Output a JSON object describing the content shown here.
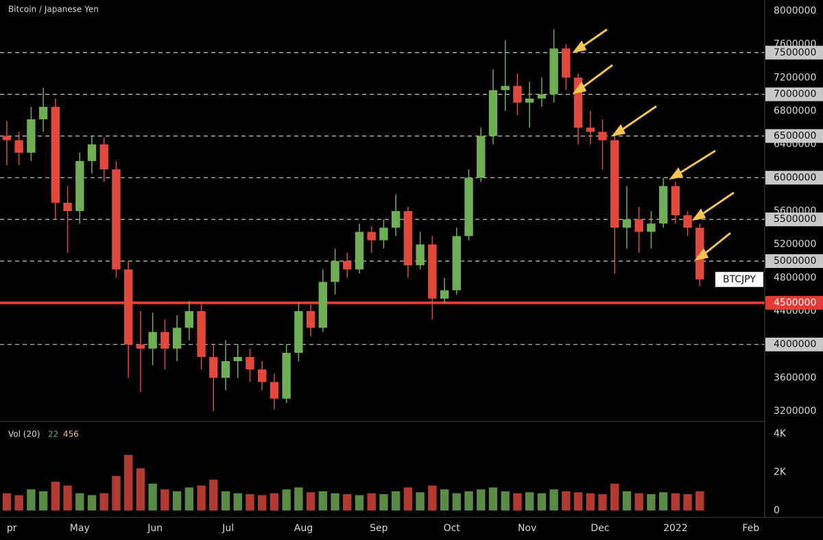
{
  "chart_data": {
    "type": "candlestick",
    "title": "Bitcoin / Japanese Yen",
    "symbol": "BTCJPY",
    "x": [
      0,
      5,
      10,
      15,
      20,
      25,
      30,
      35,
      40,
      45,
      50,
      55,
      60,
      65,
      70,
      75,
      80,
      85,
      90,
      95,
      100,
      105,
      110,
      115,
      120,
      125,
      130,
      135,
      140,
      145,
      150,
      155,
      160,
      165,
      170,
      175,
      180,
      185,
      190,
      195,
      200,
      205,
      210,
      215,
      220,
      225,
      230,
      235,
      240,
      245,
      250,
      255,
      260,
      265,
      270,
      275,
      280,
      285
    ],
    "open": [
      6500000,
      6450000,
      6300000,
      6700000,
      6850000,
      5700000,
      5600000,
      6200000,
      6400000,
      6100000,
      4900000,
      4000000,
      3950000,
      4150000,
      3950000,
      4200000,
      4400000,
      3850000,
      3600000,
      3800000,
      3850000,
      3700000,
      3550000,
      3350000,
      3900000,
      4400000,
      4200000,
      4750000,
      5000000,
      4900000,
      5350000,
      5250000,
      5400000,
      5600000,
      4950000,
      5200000,
      4550000,
      4650000,
      5300000,
      6000000,
      6500000,
      7050000,
      7100000,
      6900000,
      6950000,
      7000000,
      7550000,
      7200000,
      6600000,
      6550000,
      6450000,
      5400000,
      5500000,
      5350000,
      5450000,
      5900000,
      5550000,
      5400000
    ],
    "high": [
      6680000,
      6550000,
      6850000,
      7080000,
      6950000,
      5900000,
      6300000,
      6500000,
      6480000,
      6200000,
      5000000,
      4400000,
      4380000,
      4300000,
      4350000,
      4520000,
      4500000,
      4000000,
      4050000,
      4000000,
      3950000,
      3800000,
      3650000,
      4000000,
      4500000,
      4480000,
      4900000,
      5150000,
      5100000,
      5450000,
      5420000,
      5500000,
      5800000,
      5650000,
      5350000,
      5300000,
      4800000,
      5400000,
      6100000,
      6600000,
      7300000,
      7650000,
      7250000,
      7150000,
      7200000,
      7780000,
      7600000,
      7250000,
      6800000,
      6700000,
      6500000,
      5900000,
      5650000,
      5600000,
      6000000,
      5950000,
      5600000,
      5450000
    ],
    "low": [
      6150000,
      6150000,
      6200000,
      6550000,
      5500000,
      5100000,
      5450000,
      6050000,
      5950000,
      4800000,
      3600000,
      3430000,
      3750000,
      3700000,
      3800000,
      4050000,
      3700000,
      3200000,
      3450000,
      3600000,
      3550000,
      3450000,
      3220000,
      3300000,
      3800000,
      4100000,
      4150000,
      4600000,
      4800000,
      4850000,
      5100000,
      5150000,
      5300000,
      4800000,
      4900000,
      4300000,
      4500000,
      4600000,
      5250000,
      5950000,
      6400000,
      6800000,
      6750000,
      6600000,
      6850000,
      6900000,
      7050000,
      6400000,
      6400000,
      6100000,
      4850000,
      5150000,
      5100000,
      5150000,
      5400000,
      5450000,
      5300000,
      4700000
    ],
    "close": [
      6450000,
      6300000,
      6700000,
      6850000,
      5700000,
      5600000,
      6200000,
      6400000,
      6100000,
      4900000,
      4000000,
      3950000,
      4150000,
      3950000,
      4200000,
      4400000,
      3850000,
      3600000,
      3800000,
      3850000,
      3700000,
      3550000,
      3350000,
      3900000,
      4400000,
      4200000,
      4750000,
      5000000,
      4900000,
      5350000,
      5250000,
      5400000,
      5600000,
      4950000,
      5200000,
      4550000,
      4650000,
      5300000,
      6000000,
      6500000,
      7050000,
      7100000,
      6900000,
      6950000,
      7000000,
      7550000,
      7200000,
      6600000,
      6550000,
      6450000,
      5400000,
      5500000,
      5350000,
      5450000,
      5900000,
      5550000,
      5400000,
      4780000
    ],
    "volume": [
      900,
      800,
      1100,
      1000,
      1500,
      1300,
      900,
      800,
      900,
      1800,
      2900,
      2200,
      1400,
      1100,
      1000,
      1200,
      1300,
      1600,
      1000,
      900,
      850,
      800,
      900,
      1100,
      1200,
      950,
      1000,
      900,
      850,
      800,
      900,
      850,
      1000,
      1200,
      950,
      1300,
      1100,
      900,
      1000,
      1100,
      1200,
      1000,
      900,
      950,
      900,
      1100,
      1000,
      950,
      900,
      850,
      1400,
      1000,
      900,
      850,
      950,
      900,
      850,
      1000
    ],
    "up_color": "#6fae55",
    "down_color": "#e0493c",
    "xlim": [
      -2.8,
      311.7
    ],
    "xticks": [
      {
        "value": 0,
        "label": "pr"
      },
      {
        "value": 30,
        "label": "May"
      },
      {
        "value": 61,
        "label": "Jun"
      },
      {
        "value": 91,
        "label": "Jul"
      },
      {
        "value": 122,
        "label": "Aug"
      },
      {
        "value": 153,
        "label": "Sep"
      },
      {
        "value": 183,
        "label": "Oct"
      },
      {
        "value": 214,
        "label": "Nov"
      },
      {
        "value": 244,
        "label": "Dec"
      },
      {
        "value": 275,
        "label": "2022"
      },
      {
        "value": 306,
        "label": "Feb"
      }
    ],
    "ylim": [
      3077000,
      8131000
    ],
    "yticks": [
      8000000,
      7600000,
      7200000,
      6800000,
      6400000,
      6000000,
      5600000,
      5200000,
      4800000,
      4400000,
      4000000,
      3600000,
      3200000
    ],
    "levels": [
      7500000,
      7000000,
      6500000,
      6000000,
      5500000,
      5000000,
      4000000
    ],
    "level_color": "#c8c8c8",
    "support": 4500000,
    "support_color": "#e53935",
    "volume_title": "Vol (20)",
    "volume_legend": [
      22,
      456
    ],
    "volume_ylim": [
      -360,
      4640
    ],
    "volume_yticks": [
      {
        "value": 4000,
        "label": "4K"
      },
      {
        "value": 2000,
        "label": "2K"
      },
      0
    ]
  }
}
